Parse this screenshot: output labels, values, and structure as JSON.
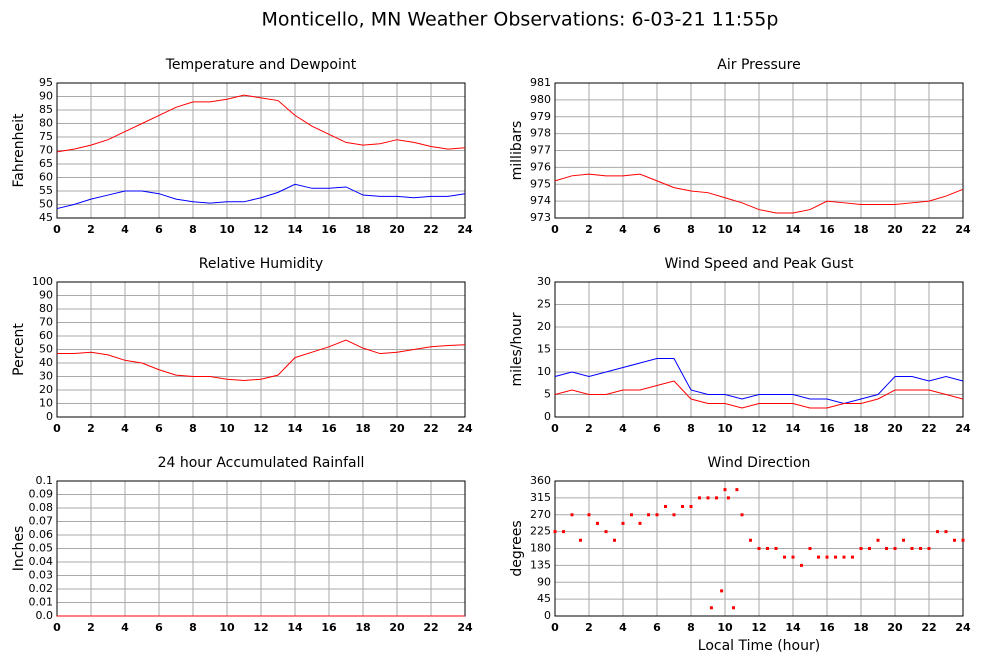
{
  "title": "Monticello, MN Weather Observations: 6-03-21 11:55p",
  "chart_data": [
    {
      "type": "line",
      "title": "Temperature and Dewpoint",
      "ylabel": "Fahrenheit",
      "x": [
        0,
        1,
        2,
        3,
        4,
        5,
        6,
        7,
        8,
        9,
        10,
        11,
        12,
        13,
        14,
        15,
        16,
        17,
        18,
        19,
        20,
        21,
        22,
        23,
        24
      ],
      "series": [
        {
          "color": "#ff0000",
          "values": [
            69.5,
            70.5,
            72,
            74,
            77,
            80,
            83,
            86,
            88,
            88,
            89,
            90.5,
            89.5,
            88.5,
            83,
            79,
            76,
            73,
            72,
            72.5,
            74,
            73,
            71.5,
            70.5,
            71
          ]
        },
        {
          "color": "#0000ff",
          "values": [
            48.5,
            50,
            52,
            53.5,
            55,
            55,
            54,
            52,
            51,
            50.5,
            51,
            51,
            52.5,
            54.5,
            57.5,
            56,
            56,
            56.5,
            53.5,
            53,
            53,
            52.5,
            53,
            53,
            54
          ]
        }
      ],
      "xlim": [
        0,
        24
      ],
      "xticks": [
        0,
        2,
        4,
        6,
        8,
        10,
        12,
        14,
        16,
        18,
        20,
        22,
        24
      ],
      "ylim": [
        45,
        95
      ],
      "yticks": [
        45,
        50,
        55,
        60,
        65,
        70,
        75,
        80,
        85,
        90,
        95
      ],
      "grid": true
    },
    {
      "type": "line",
      "title": "Air Pressure",
      "ylabel": "millibars",
      "x": [
        0,
        1,
        2,
        3,
        4,
        5,
        6,
        7,
        8,
        9,
        10,
        11,
        12,
        13,
        14,
        15,
        16,
        17,
        18,
        19,
        20,
        21,
        22,
        23,
        24
      ],
      "series": [
        {
          "color": "#ff0000",
          "values": [
            975.2,
            975.5,
            975.6,
            975.5,
            975.5,
            975.6,
            975.2,
            974.8,
            974.6,
            974.5,
            974.2,
            973.9,
            973.5,
            973.3,
            973.3,
            973.5,
            974.0,
            973.9,
            973.8,
            973.8,
            973.8,
            973.9,
            974.0,
            974.3,
            974.7
          ]
        }
      ],
      "xlim": [
        0,
        24
      ],
      "xticks": [
        0,
        2,
        4,
        6,
        8,
        10,
        12,
        14,
        16,
        18,
        20,
        22,
        24
      ],
      "ylim": [
        973,
        981
      ],
      "yticks": [
        973,
        974,
        975,
        976,
        977,
        978,
        979,
        980,
        981
      ],
      "grid": true
    },
    {
      "type": "line",
      "title": "Relative Humidity",
      "ylabel": "Percent",
      "x": [
        0,
        1,
        2,
        3,
        4,
        5,
        6,
        7,
        8,
        9,
        10,
        11,
        12,
        13,
        14,
        15,
        16,
        17,
        18,
        19,
        20,
        21,
        22,
        23,
        24
      ],
      "series": [
        {
          "color": "#ff0000",
          "values": [
            47,
            47,
            48,
            46,
            42,
            40,
            35,
            31,
            30,
            30,
            28,
            27,
            28,
            31,
            44,
            48,
            52,
            57,
            51,
            47,
            48,
            50,
            52,
            53,
            53.5
          ]
        }
      ],
      "xlim": [
        0,
        24
      ],
      "xticks": [
        0,
        2,
        4,
        6,
        8,
        10,
        12,
        14,
        16,
        18,
        20,
        22,
        24
      ],
      "ylim": [
        0,
        100
      ],
      "yticks": [
        0,
        10,
        20,
        30,
        40,
        50,
        60,
        70,
        80,
        90,
        100
      ],
      "grid": true
    },
    {
      "type": "line",
      "title": "Wind Speed and Peak Gust",
      "ylabel": "miles/hour",
      "x": [
        0,
        1,
        2,
        3,
        4,
        5,
        6,
        7,
        8,
        9,
        10,
        11,
        12,
        13,
        14,
        15,
        16,
        17,
        18,
        19,
        20,
        21,
        22,
        23,
        24
      ],
      "series": [
        {
          "color": "#0000ff",
          "values": [
            9,
            10,
            9,
            10,
            11,
            12,
            13,
            13,
            6,
            5,
            5,
            4,
            5,
            5,
            5,
            4,
            4,
            3,
            4,
            5,
            9,
            9,
            8,
            9,
            8
          ]
        },
        {
          "color": "#ff0000",
          "values": [
            5,
            6,
            5,
            5,
            6,
            6,
            7,
            8,
            4,
            3,
            3,
            2,
            3,
            3,
            3,
            2,
            2,
            3,
            3,
            4,
            6,
            6,
            6,
            5,
            4
          ]
        }
      ],
      "xlim": [
        0,
        24
      ],
      "xticks": [
        0,
        2,
        4,
        6,
        8,
        10,
        12,
        14,
        16,
        18,
        20,
        22,
        24
      ],
      "ylim": [
        0,
        30
      ],
      "yticks": [
        0,
        5,
        10,
        15,
        20,
        25,
        30
      ],
      "grid": true
    },
    {
      "type": "line",
      "title": "24 hour Accumulated Rainfall",
      "ylabel": "Inches",
      "x": [
        0,
        1,
        2,
        3,
        4,
        5,
        6,
        7,
        8,
        9,
        10,
        11,
        12,
        13,
        14,
        15,
        16,
        17,
        18,
        19,
        20,
        21,
        22,
        23,
        24
      ],
      "series": [
        {
          "color": "#ff0000",
          "values": [
            0,
            0,
            0,
            0,
            0,
            0,
            0,
            0,
            0,
            0,
            0,
            0,
            0,
            0,
            0,
            0,
            0,
            0,
            0,
            0,
            0,
            0,
            0,
            0,
            0
          ]
        }
      ],
      "xlim": [
        0,
        24
      ],
      "xticks": [
        0,
        2,
        4,
        6,
        8,
        10,
        12,
        14,
        16,
        18,
        20,
        22,
        24
      ],
      "ylim": [
        0,
        0.1
      ],
      "yticks": [
        {
          "value": 0,
          "label": "0.0"
        },
        0.01,
        0.02,
        0.03,
        0.04,
        0.05,
        0.06,
        0.07,
        0.08,
        0.09,
        0.1
      ],
      "grid": true
    },
    {
      "type": "scatter",
      "title": "Wind Direction",
      "ylabel": "degrees",
      "xlabel": "Local Time (hour)",
      "x": [
        0,
        0.5,
        1,
        1.5,
        2,
        2.5,
        3,
        3.5,
        4,
        4.5,
        5,
        5.5,
        6,
        6.5,
        7,
        7.5,
        8,
        8.5,
        9,
        9.2,
        9.5,
        9.8,
        10,
        10.2,
        10.5,
        10.7,
        11,
        11.5,
        12,
        12.5,
        13,
        13.5,
        14,
        14.5,
        15,
        15.5,
        16,
        16.5,
        17,
        17.5,
        18,
        18.5,
        19,
        19.5,
        20,
        20.5,
        21,
        21.5,
        22,
        22.5,
        23,
        23.5,
        24
      ],
      "series": [
        {
          "color": "#ff0000",
          "values": [
            225,
            225,
            270,
            202,
            270,
            247,
            225,
            202,
            247,
            270,
            247,
            270,
            270,
            292,
            270,
            292,
            292,
            315,
            315,
            22,
            315,
            67,
            337,
            315,
            22,
            337,
            270,
            202,
            180,
            180,
            180,
            157,
            157,
            135,
            180,
            157,
            157,
            157,
            157,
            157,
            180,
            180,
            202,
            180,
            180,
            202,
            180,
            180,
            180,
            225,
            225,
            202,
            202
          ]
        }
      ],
      "xlim": [
        0,
        24
      ],
      "xticks": [
        0,
        2,
        4,
        6,
        8,
        10,
        12,
        14,
        16,
        18,
        20,
        22,
        24
      ],
      "ylim": [
        0,
        360
      ],
      "yticks": [
        0,
        45,
        90,
        135,
        180,
        225,
        270,
        315,
        360
      ],
      "grid": true
    }
  ]
}
